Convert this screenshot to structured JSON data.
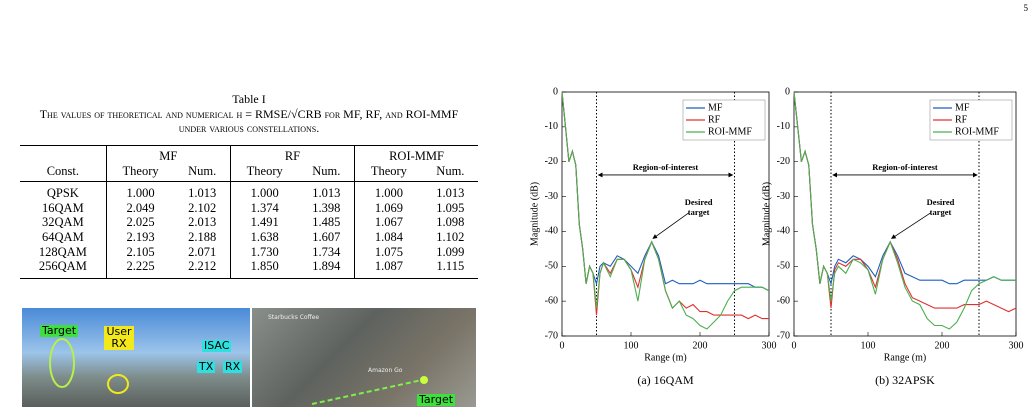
{
  "page_number": "5",
  "table": {
    "label": "Table I",
    "caption": "The values of theoretical and numerical η = RMSE/√CRB for MF, RF, and ROI-MMF under various constellations.",
    "header": [
      "Const.",
      "MF",
      "RF",
      "ROI-MMF"
    ],
    "subheader": [
      "Theory",
      "Num.",
      "Theory",
      "Num.",
      "Theory",
      "Num."
    ],
    "rows": [
      [
        "QPSK",
        "1.000",
        "1.013",
        "1.000",
        "1.013",
        "1.000",
        "1.013"
      ],
      [
        "16QAM",
        "2.049",
        "2.102",
        "1.374",
        "1.398",
        "1.069",
        "1.095"
      ],
      [
        "32QAM",
        "2.025",
        "2.013",
        "1.491",
        "1.485",
        "1.067",
        "1.098"
      ],
      [
        "64QAM",
        "2.193",
        "2.188",
        "1.638",
        "1.607",
        "1.084",
        "1.102"
      ],
      [
        "128QAM",
        "2.105",
        "2.071",
        "1.730",
        "1.734",
        "1.075",
        "1.099"
      ],
      [
        "256QAM",
        "2.225",
        "2.212",
        "1.850",
        "1.894",
        "1.087",
        "1.115"
      ]
    ]
  },
  "photo": {
    "labels": [
      "Target",
      "User RX",
      "ISAC",
      "TX",
      "RX",
      "Starbucks Coffee",
      "Amazon Go",
      "Target"
    ]
  },
  "chart_data": [
    {
      "type": "line",
      "caption": "(a) 16QAM",
      "xlabel": "Range (m)",
      "ylabel": "Magnitude (dB)",
      "x": [
        0,
        5,
        10,
        15,
        20,
        25,
        30,
        35,
        40,
        45,
        50,
        55,
        60,
        70,
        80,
        90,
        100,
        110,
        120,
        130,
        140,
        150,
        160,
        170,
        180,
        190,
        200,
        210,
        220,
        230,
        240,
        250,
        260,
        270,
        280,
        290,
        300
      ],
      "series": [
        {
          "name": "MF",
          "color": "#1f5fbf",
          "values": [
            0,
            -10,
            -20,
            -17,
            -21,
            -38,
            -45,
            -55,
            -50,
            -52,
            -55,
            -50,
            -49,
            -50,
            -47,
            -48,
            -50,
            -52,
            -47,
            -43,
            -47,
            -55,
            -54,
            -55,
            -55,
            -55,
            -54,
            -55,
            -55,
            -55,
            -55,
            -55,
            -55,
            -55,
            -56,
            -56,
            -57
          ]
        },
        {
          "name": "RF",
          "color": "#e03030",
          "values": [
            0,
            -10,
            -20,
            -17,
            -21,
            -38,
            -45,
            -55,
            -50,
            -52,
            -64,
            -52,
            -49,
            -52,
            -48,
            -48,
            -51,
            -56,
            -48,
            -43,
            -48,
            -57,
            -62,
            -60,
            -62,
            -61,
            -63,
            -63,
            -64,
            -64,
            -64,
            -64,
            -64,
            -65,
            -64,
            -65,
            -65
          ]
        },
        {
          "name": "ROI-MMF",
          "color": "#4caf50",
          "values": [
            0,
            -10,
            -20,
            -17,
            -21,
            -38,
            -45,
            -55,
            -50,
            -52,
            -62,
            -52,
            -49,
            -53,
            -48,
            -48,
            -51,
            -60,
            -48,
            -43,
            -48,
            -57,
            -62,
            -60,
            -64,
            -65,
            -67,
            -68,
            -66,
            -64,
            -60,
            -57,
            -56,
            -56,
            -56,
            -56,
            -57
          ]
        }
      ],
      "xlim": [
        0,
        300
      ],
      "xticks": [
        0,
        100,
        200,
        300
      ],
      "ylim": [
        -70,
        0
      ],
      "yticks": [
        0,
        -10,
        -20,
        -30,
        -40,
        -50,
        -60,
        -70
      ],
      "legend": "upper right",
      "vlines": [
        50,
        250
      ],
      "annotations": {
        "region": "Region-of-interest",
        "target": "Desired target"
      }
    },
    {
      "type": "line",
      "caption": "(b) 32APSK",
      "xlabel": "Range (m)",
      "ylabel": "Magnitude (dB)",
      "x": [
        0,
        5,
        10,
        15,
        20,
        25,
        30,
        35,
        40,
        45,
        50,
        55,
        60,
        70,
        80,
        90,
        100,
        110,
        120,
        130,
        140,
        150,
        160,
        170,
        180,
        190,
        200,
        210,
        220,
        230,
        240,
        250,
        260,
        270,
        280,
        290,
        300
      ],
      "series": [
        {
          "name": "MF",
          "color": "#1f5fbf",
          "values": [
            0,
            -10,
            -20,
            -17,
            -21,
            -38,
            -45,
            -55,
            -50,
            -52,
            -55,
            -50,
            -48,
            -49,
            -47,
            -48,
            -50,
            -53,
            -47,
            -43,
            -47,
            -52,
            -53,
            -54,
            -54,
            -54,
            -54,
            -55,
            -55,
            -54,
            -54,
            -54,
            -54,
            -53,
            -54,
            -54,
            -54
          ]
        },
        {
          "name": "RF",
          "color": "#e03030",
          "values": [
            0,
            -10,
            -20,
            -17,
            -21,
            -38,
            -45,
            -55,
            -50,
            -52,
            -62,
            -51,
            -49,
            -50,
            -48,
            -48,
            -51,
            -56,
            -48,
            -43,
            -48,
            -55,
            -59,
            -60,
            -61,
            -62,
            -62,
            -62,
            -62,
            -61,
            -61,
            -61,
            -60,
            -61,
            -62,
            -63,
            -62
          ]
        },
        {
          "name": "ROI-MMF",
          "color": "#4caf50",
          "values": [
            0,
            -10,
            -20,
            -17,
            -21,
            -38,
            -45,
            -55,
            -50,
            -52,
            -60,
            -52,
            -50,
            -52,
            -48,
            -49,
            -51,
            -58,
            -48,
            -43,
            -49,
            -56,
            -60,
            -61,
            -65,
            -67,
            -67,
            -68,
            -66,
            -62,
            -57,
            -55,
            -54,
            -53,
            -54,
            -54,
            -54
          ]
        }
      ],
      "xlim": [
        0,
        300
      ],
      "xticks": [
        0,
        100,
        200,
        300
      ],
      "ylim": [
        -70,
        0
      ],
      "yticks": [
        0,
        -10,
        -20,
        -30,
        -40,
        -50,
        -60,
        -70
      ],
      "legend": "upper right",
      "vlines": [
        50,
        250
      ],
      "annotations": {
        "region": "Region-of-interest",
        "target": "Desired target"
      }
    }
  ]
}
